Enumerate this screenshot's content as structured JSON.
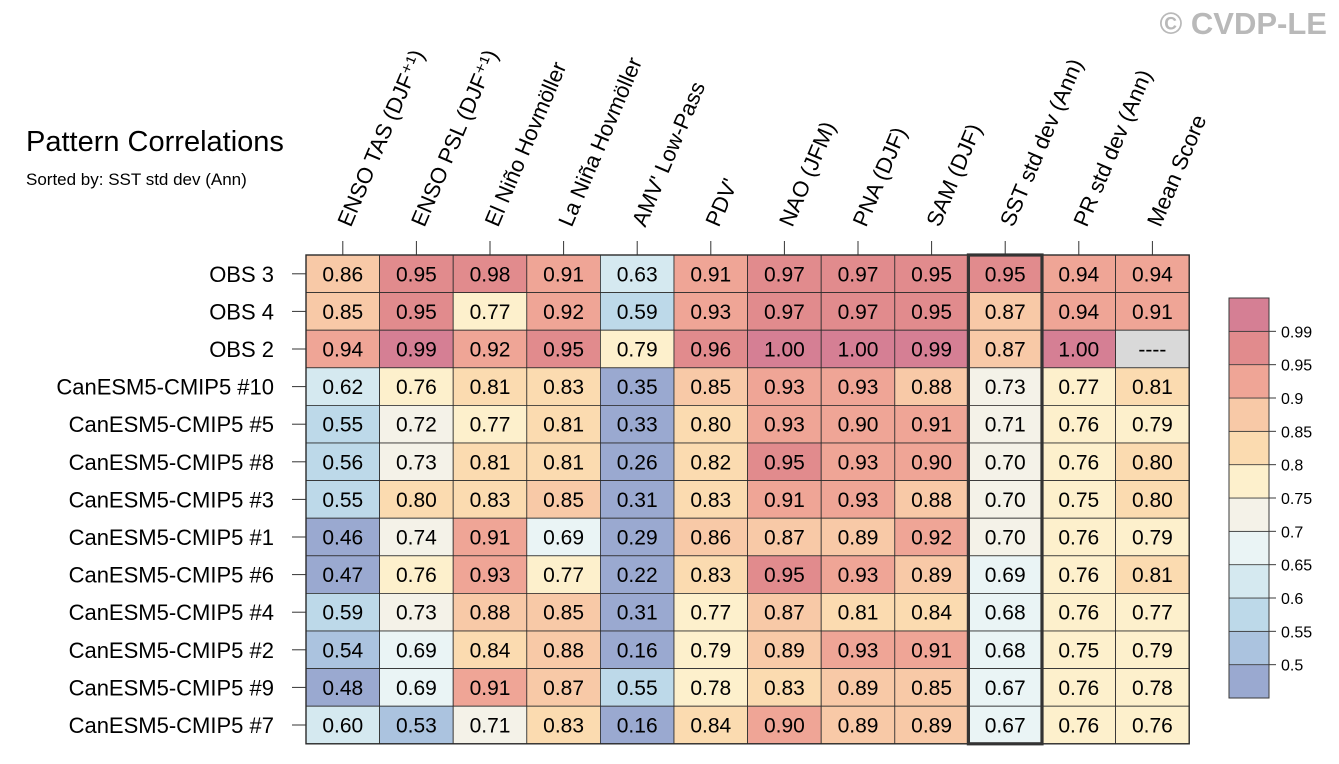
{
  "header": {
    "title": "Pattern Correlations",
    "subtitle": "Sorted by: SST std dev (Ann)",
    "watermark": "© CVDP-LE"
  },
  "chart_data": {
    "type": "heatmap",
    "title": "Pattern Correlations",
    "subtitle": "Sorted by: SST std dev (Ann)",
    "highlighted_column": "SST std dev (Ann)",
    "columns": [
      "ENSO TAS (DJF⁺¹)",
      "ENSO PSL (DJF⁺¹)",
      "El Niño Hovmöller",
      "La Niña Hovmöller",
      "AMV' Low-Pass",
      "PDV'",
      "NAO (JFM)",
      "PNA (DJF)",
      "SAM (DJF)",
      "SST std dev (Ann)",
      "PR std dev (Ann)",
      "Mean Score"
    ],
    "rows": [
      "OBS 3",
      "OBS 4",
      "OBS 2",
      "CanESM5-CMIP5 #10",
      "CanESM5-CMIP5 #5",
      "CanESM5-CMIP5 #8",
      "CanESM5-CMIP5 #3",
      "CanESM5-CMIP5 #1",
      "CanESM5-CMIP5 #6",
      "CanESM5-CMIP5 #4",
      "CanESM5-CMIP5 #2",
      "CanESM5-CMIP5 #9",
      "CanESM5-CMIP5 #7"
    ],
    "values": [
      [
        "0.86",
        "0.95",
        "0.98",
        "0.91",
        "0.63",
        "0.91",
        "0.97",
        "0.97",
        "0.95",
        "0.95",
        "0.94",
        "0.94"
      ],
      [
        "0.85",
        "0.95",
        "0.77",
        "0.92",
        "0.59",
        "0.93",
        "0.97",
        "0.97",
        "0.95",
        "0.87",
        "0.94",
        "0.91"
      ],
      [
        "0.94",
        "0.99",
        "0.92",
        "0.95",
        "0.79",
        "0.96",
        "1.00",
        "1.00",
        "0.99",
        "0.87",
        "1.00",
        "----"
      ],
      [
        "0.62",
        "0.76",
        "0.81",
        "0.83",
        "0.35",
        "0.85",
        "0.93",
        "0.93",
        "0.88",
        "0.73",
        "0.77",
        "0.81"
      ],
      [
        "0.55",
        "0.72",
        "0.77",
        "0.81",
        "0.33",
        "0.80",
        "0.93",
        "0.90",
        "0.91",
        "0.71",
        "0.76",
        "0.79"
      ],
      [
        "0.56",
        "0.73",
        "0.81",
        "0.81",
        "0.26",
        "0.82",
        "0.95",
        "0.93",
        "0.90",
        "0.70",
        "0.76",
        "0.80"
      ],
      [
        "0.55",
        "0.80",
        "0.83",
        "0.85",
        "0.31",
        "0.83",
        "0.91",
        "0.93",
        "0.88",
        "0.70",
        "0.75",
        "0.80"
      ],
      [
        "0.46",
        "0.74",
        "0.91",
        "0.69",
        "0.29",
        "0.86",
        "0.87",
        "0.89",
        "0.92",
        "0.70",
        "0.76",
        "0.79"
      ],
      [
        "0.47",
        "0.76",
        "0.93",
        "0.77",
        "0.22",
        "0.83",
        "0.95",
        "0.93",
        "0.89",
        "0.69",
        "0.76",
        "0.81"
      ],
      [
        "0.59",
        "0.73",
        "0.88",
        "0.85",
        "0.31",
        "0.77",
        "0.87",
        "0.81",
        "0.84",
        "0.68",
        "0.76",
        "0.77"
      ],
      [
        "0.54",
        "0.69",
        "0.84",
        "0.88",
        "0.16",
        "0.79",
        "0.89",
        "0.93",
        "0.91",
        "0.68",
        "0.75",
        "0.79"
      ],
      [
        "0.48",
        "0.69",
        "0.91",
        "0.87",
        "0.55",
        "0.78",
        "0.83",
        "0.89",
        "0.85",
        "0.67",
        "0.76",
        "0.78"
      ],
      [
        "0.60",
        "0.53",
        "0.71",
        "0.83",
        "0.16",
        "0.84",
        "0.90",
        "0.89",
        "0.89",
        "0.67",
        "0.76",
        "0.76"
      ]
    ],
    "missing_color": "#d9d9d9",
    "colorbar": {
      "tick_labels": [
        "0.99",
        "0.95",
        "0.9",
        "0.85",
        "0.8",
        "0.75",
        "0.7",
        "0.65",
        "0.6",
        "0.55",
        "0.5"
      ],
      "thresholds": [
        0.5,
        0.55,
        0.6,
        0.65,
        0.7,
        0.75,
        0.8,
        0.85,
        0.9,
        0.95,
        0.99
      ],
      "colors": [
        "#9aa9d0",
        "#abc3df",
        "#bdd9e9",
        "#d5e9f0",
        "#eaf4f5",
        "#f4f2e8",
        "#fdf0cc",
        "#fbdbb0",
        "#f8c9a7",
        "#efa596",
        "#e18b8d",
        "#d57f94"
      ]
    }
  }
}
